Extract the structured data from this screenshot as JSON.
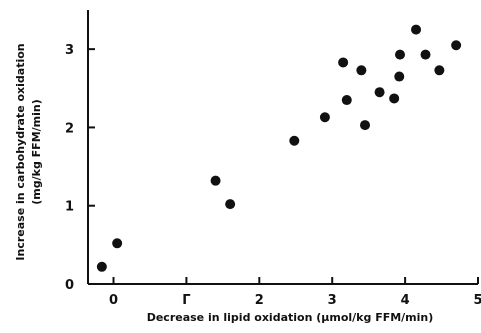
{
  "chart_data": {
    "type": "scatter",
    "title": "",
    "xlabel": "Decrease in lipid oxidation (μmol/kg FFM/min)",
    "ylabel_line1": "Increase in carbohydrate oxidation",
    "ylabel_line2": "(mg/kg FFM/min)",
    "xlim": [
      -0.35,
      5.0
    ],
    "ylim": [
      0,
      3.5
    ],
    "x_ticks": [
      {
        "value": 0,
        "label": "0"
      },
      {
        "value": 1,
        "label": "Γ"
      },
      {
        "value": 2,
        "label": "2"
      },
      {
        "value": 3,
        "label": "3"
      },
      {
        "value": 4,
        "label": "4"
      },
      {
        "value": 5,
        "label": "5"
      }
    ],
    "y_ticks": [
      {
        "value": 0,
        "label": "0"
      },
      {
        "value": 1,
        "label": "1"
      },
      {
        "value": 2,
        "label": "2"
      },
      {
        "value": 3,
        "label": "3"
      }
    ],
    "grid": false,
    "legend": "none",
    "marker_color": "#111111",
    "points": [
      {
        "x": -0.16,
        "y": 0.22
      },
      {
        "x": 0.05,
        "y": 0.52
      },
      {
        "x": 1.4,
        "y": 1.32
      },
      {
        "x": 1.6,
        "y": 1.02
      },
      {
        "x": 2.48,
        "y": 1.83
      },
      {
        "x": 2.9,
        "y": 2.13
      },
      {
        "x": 3.15,
        "y": 2.83
      },
      {
        "x": 3.2,
        "y": 2.35
      },
      {
        "x": 3.4,
        "y": 2.73
      },
      {
        "x": 3.45,
        "y": 2.03
      },
      {
        "x": 3.65,
        "y": 2.45
      },
      {
        "x": 3.85,
        "y": 2.37
      },
      {
        "x": 3.92,
        "y": 2.65
      },
      {
        "x": 3.93,
        "y": 2.93
      },
      {
        "x": 4.15,
        "y": 3.25
      },
      {
        "x": 4.28,
        "y": 2.93
      },
      {
        "x": 4.47,
        "y": 2.73
      },
      {
        "x": 4.7,
        "y": 3.05
      }
    ]
  }
}
